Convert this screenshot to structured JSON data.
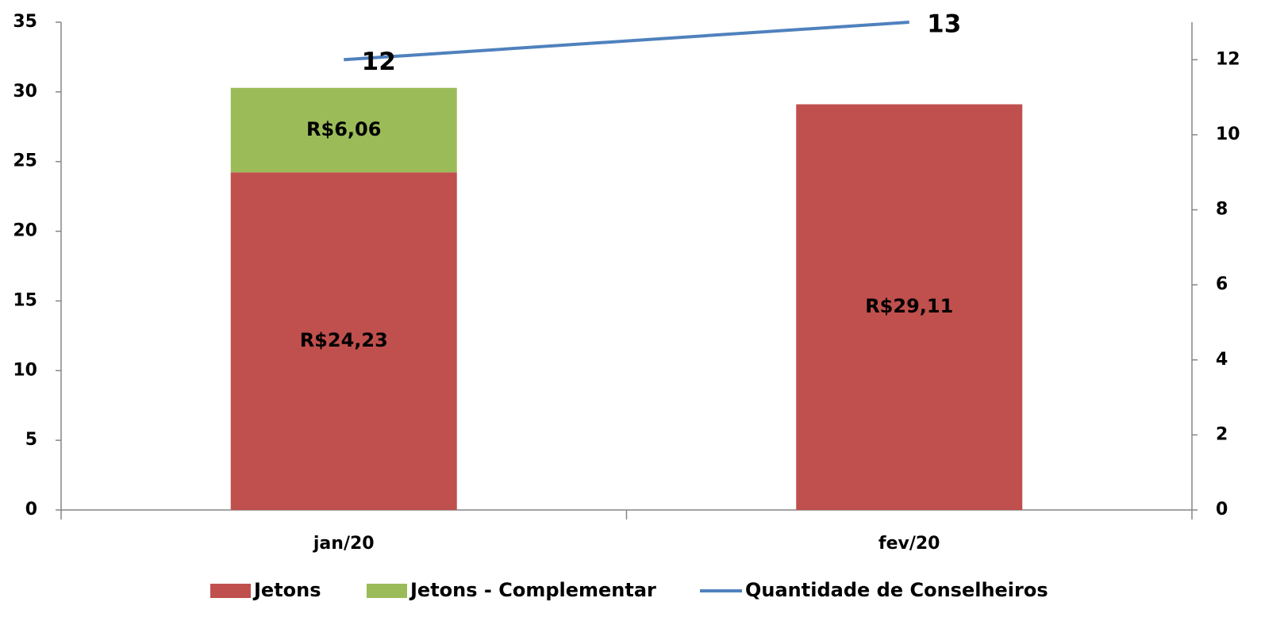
{
  "chart_data": {
    "type": "bar",
    "categories": [
      "jan/20",
      "fev/20"
    ],
    "series": [
      {
        "name": "Jetons",
        "color": "#c0504d",
        "values": [
          24.23,
          29.11
        ],
        "value_labels": [
          "R$24,23",
          "R$29,11"
        ]
      },
      {
        "name": "Jetons - Complementar",
        "color": "#9bbb59",
        "values": [
          6.06,
          null
        ],
        "value_labels": [
          "R$6,06",
          null
        ]
      },
      {
        "name": "Quantidade de Conselheiros",
        "color": "#4f81bd",
        "type": "line",
        "axis": "y2",
        "values": [
          12,
          13
        ]
      }
    ],
    "stacked": true,
    "ylim": [
      0,
      35
    ],
    "yticks": [
      0,
      5,
      10,
      15,
      20,
      25,
      30,
      35
    ],
    "y2lim": [
      0,
      13
    ],
    "y2ticks": [
      0,
      2,
      4,
      6,
      8,
      10,
      12
    ],
    "legend": "bottom"
  }
}
